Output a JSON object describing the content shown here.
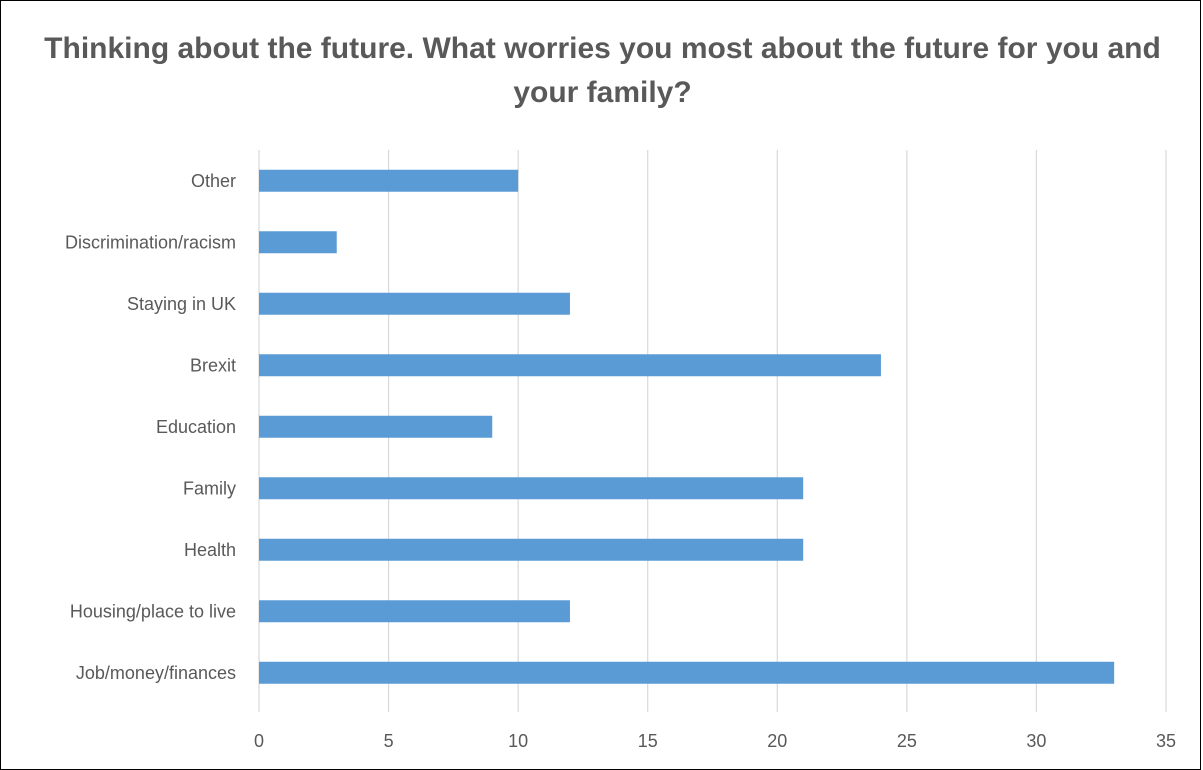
{
  "chart_data": {
    "type": "bar",
    "orientation": "horizontal",
    "title": "Thinking about the future. What worries you most about the future for you and your family?",
    "categories": [
      "Other",
      "Discrimination/racism",
      "Staying in UK",
      "Brexit",
      "Education",
      "Family",
      "Health",
      "Housing/place to live",
      "Job/money/finances"
    ],
    "values": [
      10,
      3,
      12,
      24,
      9,
      21,
      21,
      12,
      33
    ],
    "xlim": [
      0,
      35
    ],
    "xticks": [
      "0",
      "5",
      "10",
      "15",
      "20",
      "25",
      "30",
      "35"
    ],
    "grid": "vertical",
    "legend": "none",
    "colors": {
      "bar": "#5b9bd5",
      "grid": "#d9d9d9",
      "text": "#595959",
      "border": "#000000"
    }
  }
}
